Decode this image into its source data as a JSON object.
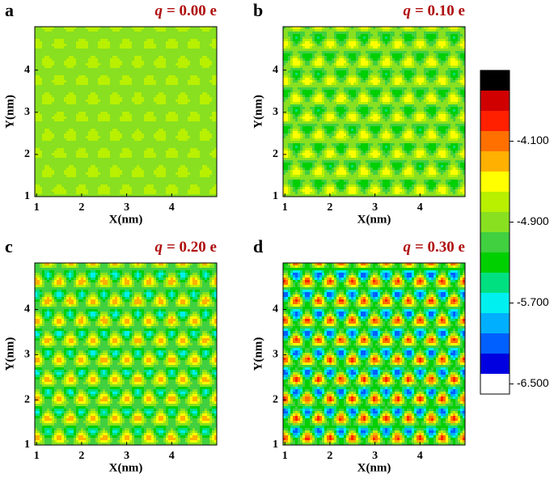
{
  "chart_data": [
    {
      "type": "contour",
      "panel": "a",
      "title_symbol": "q",
      "title": "= 0.00 e",
      "xlabel": "X(nm)",
      "ylabel": "Y(nm)",
      "xlim": [
        0.96,
        5.0
      ],
      "ylim": [
        1,
        5.03
      ],
      "xticks": [
        1,
        2,
        3,
        4
      ],
      "yticks": [
        1,
        2,
        3,
        4
      ]
    },
    {
      "type": "contour",
      "panel": "b",
      "title_symbol": "q",
      "title": "= 0.10 e",
      "xlabel": "X(nm)",
      "ylabel": "Y(nm)",
      "xlim": [
        0.96,
        5.0
      ],
      "ylim": [
        1,
        5.03
      ],
      "xticks": [
        1,
        2,
        3,
        4
      ],
      "yticks": [
        1,
        2,
        3,
        4
      ]
    },
    {
      "type": "contour",
      "panel": "c",
      "title_symbol": "q",
      "title": "= 0.20 e",
      "xlabel": "X(nm)",
      "ylabel": "Y(nm)",
      "xlim": [
        0.96,
        5.0
      ],
      "ylim": [
        1,
        5.03
      ],
      "xticks": [
        1,
        2,
        3,
        4
      ],
      "yticks": [
        1,
        2,
        3,
        4
      ]
    },
    {
      "type": "contour",
      "panel": "d",
      "title_symbol": "q",
      "title": "= 0.30 e",
      "xlabel": "X(nm)",
      "ylabel": "Y(nm)",
      "xlim": [
        0.96,
        5.0
      ],
      "ylim": [
        1,
        5.03
      ],
      "xticks": [
        1,
        2,
        3,
        4
      ],
      "yticks": [
        1,
        2,
        3,
        4
      ]
    }
  ],
  "colorbar": {
    "clim": [
      -6.6,
      -3.4
    ],
    "colors": [
      "#000000",
      "#d00000",
      "#ff2000",
      "#ff7000",
      "#ffb000",
      "#ffff00",
      "#b8f000",
      "#88e020",
      "#40d040",
      "#00d000",
      "#00e080",
      "#00f0f0",
      "#00b0ff",
      "#0060ff",
      "#0000e0",
      "#ffffff"
    ],
    "ticks": [
      {
        "value": -4.1,
        "label": "-4.100"
      },
      {
        "value": -4.9,
        "label": "-4.900"
      },
      {
        "value": -5.7,
        "label": "-5.700"
      },
      {
        "value": -6.5,
        "label": "-6.500"
      }
    ]
  }
}
